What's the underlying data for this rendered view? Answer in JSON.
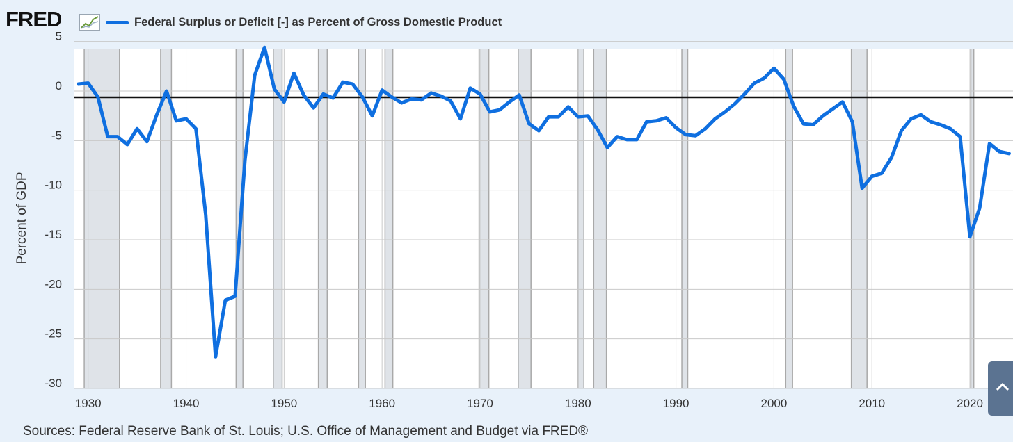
{
  "header": {
    "logo_text": "FRED",
    "logo_icon": "line-chart-icon"
  },
  "colors": {
    "series": "#0f6fe0",
    "recession": "#dfe3e8",
    "grid": "#c9c9c9",
    "zero_line": "#111111",
    "plot_bg": "#ffffff",
    "page_bg": "#e8f1fa"
  },
  "chart_data": {
    "type": "line",
    "title": "",
    "xlabel": "",
    "ylabel": "Percent of GDP",
    "ylim": [
      -30,
      5
    ],
    "xlim": [
      1929,
      2024
    ],
    "yticks": [
      5,
      0,
      -5,
      -10,
      -15,
      -20,
      -25,
      -30
    ],
    "xticks": [
      1930,
      1940,
      1950,
      1960,
      1970,
      1980,
      1990,
      2000,
      2010,
      2020
    ],
    "grid": true,
    "legend_position": "top-left",
    "reference_line": 0,
    "series": [
      {
        "name": "Federal Surplus or Deficit [-] as Percent of Gross Domestic Product",
        "x": [
          1929,
          1930,
          1931,
          1932,
          1933,
          1934,
          1935,
          1936,
          1937,
          1938,
          1939,
          1940,
          1941,
          1942,
          1943,
          1944,
          1945,
          1946,
          1947,
          1948,
          1949,
          1950,
          1951,
          1952,
          1953,
          1954,
          1955,
          1956,
          1957,
          1958,
          1959,
          1960,
          1961,
          1962,
          1963,
          1964,
          1965,
          1966,
          1967,
          1968,
          1969,
          1970,
          1971,
          1972,
          1973,
          1974,
          1975,
          1976,
          1977,
          1978,
          1979,
          1980,
          1981,
          1982,
          1983,
          1984,
          1985,
          1986,
          1987,
          1988,
          1989,
          1990,
          1991,
          1992,
          1993,
          1994,
          1995,
          1996,
          1997,
          1998,
          1999,
          2000,
          2001,
          2002,
          2003,
          2004,
          2005,
          2006,
          2007,
          2008,
          2009,
          2010,
          2011,
          2012,
          2013,
          2014,
          2015,
          2016,
          2017,
          2018,
          2019,
          2020,
          2021,
          2022,
          2023,
          2024
        ],
        "values": [
          0.7,
          0.8,
          -0.6,
          -4.6,
          -4.6,
          -5.4,
          -3.8,
          -5.1,
          -2.4,
          0.0,
          -3.0,
          -2.8,
          -3.8,
          -12.5,
          -26.8,
          -21.1,
          -20.7,
          -7.0,
          1.6,
          4.4,
          0.2,
          -1.1,
          1.8,
          -0.4,
          -1.7,
          -0.3,
          -0.7,
          0.9,
          0.7,
          -0.6,
          -2.5,
          0.1,
          -0.6,
          -1.2,
          -0.8,
          -0.9,
          -0.2,
          -0.5,
          -1.0,
          -2.8,
          0.3,
          -0.3,
          -2.1,
          -1.9,
          -1.1,
          -0.4,
          -3.3,
          -4.0,
          -2.6,
          -2.6,
          -1.6,
          -2.6,
          -2.5,
          -3.9,
          -5.7,
          -4.6,
          -4.9,
          -4.9,
          -3.1,
          -3.0,
          -2.7,
          -3.7,
          -4.4,
          -4.5,
          -3.8,
          -2.8,
          -2.1,
          -1.3,
          -0.3,
          0.8,
          1.3,
          2.3,
          1.2,
          -1.5,
          -3.3,
          -3.4,
          -2.5,
          -1.8,
          -1.1,
          -3.1,
          -9.8,
          -8.6,
          -8.3,
          -6.7,
          -4.0,
          -2.8,
          -2.4,
          -3.1,
          -3.4,
          -3.8,
          -4.6,
          -14.7,
          -11.8,
          -5.3,
          -6.1,
          -6.3
        ]
      }
    ],
    "recessions": [
      [
        1929.6,
        1933.2
      ],
      [
        1937.4,
        1938.5
      ],
      [
        1945.1,
        1945.8
      ],
      [
        1948.9,
        1949.8
      ],
      [
        1953.5,
        1954.4
      ],
      [
        1957.6,
        1958.3
      ],
      [
        1960.3,
        1961.1
      ],
      [
        1969.9,
        1970.9
      ],
      [
        1973.9,
        1975.2
      ],
      [
        1980.0,
        1980.6
      ],
      [
        1981.6,
        1982.9
      ],
      [
        1990.6,
        1991.2
      ],
      [
        2001.2,
        2001.9
      ],
      [
        2007.9,
        2009.5
      ],
      [
        2020.1,
        2020.4
      ]
    ],
    "source": "Sources: Federal Reserve Bank of St. Louis; U.S. Office of Management and Budget via FRED®"
  }
}
